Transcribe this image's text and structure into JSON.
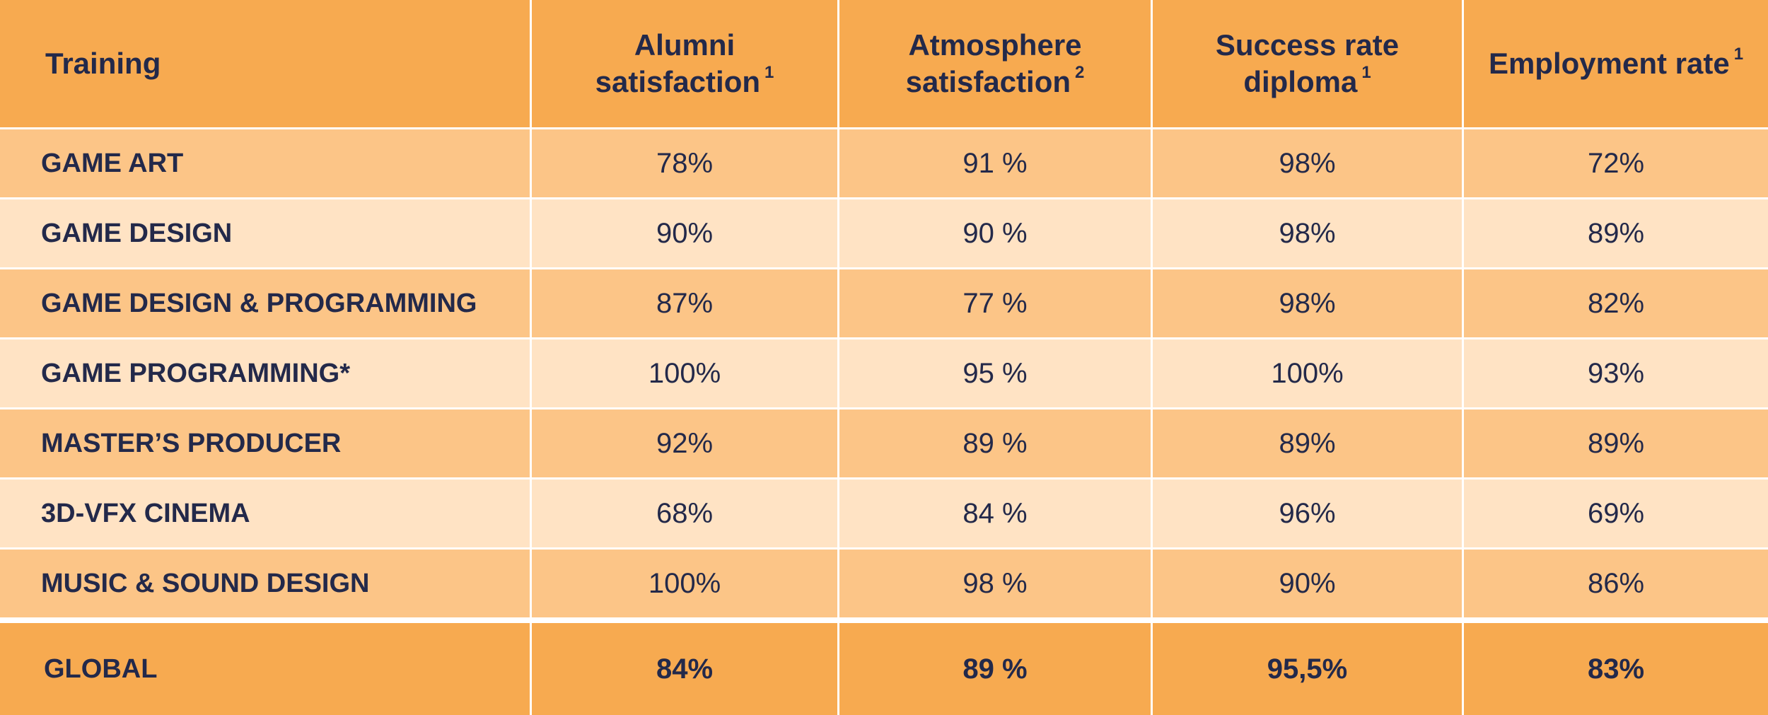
{
  "colors": {
    "header": "#f7aa50",
    "row_dark": "#fcc587",
    "row_light": "#ffe3c4",
    "text": "#23294a"
  },
  "headers": [
    {
      "line1": "Training",
      "line2": "",
      "sup": ""
    },
    {
      "line1": "Alumni",
      "line2": "satisfaction",
      "sup": "1"
    },
    {
      "line1": "Atmosphere",
      "line2": "satisfaction",
      "sup": "2"
    },
    {
      "line1": "Success rate",
      "line2": "diploma",
      "sup": "1"
    },
    {
      "line1": "Employment rate",
      "line2": "",
      "sup": "1"
    }
  ],
  "rows": [
    {
      "training": "GAME ART",
      "alumni": "78%",
      "atmosphere": "91 %",
      "success": "98%",
      "employment": "72%"
    },
    {
      "training": "GAME DESIGN",
      "alumni": "90%",
      "atmosphere": "90 %",
      "success": "98%",
      "employment": "89%"
    },
    {
      "training": "GAME DESIGN & PROGRAMMING",
      "alumni": "87%",
      "atmosphere": "77 %",
      "success": "98%",
      "employment": "82%"
    },
    {
      "training": "GAME PROGRAMMING*",
      "alumni": "100%",
      "atmosphere": "95 %",
      "success": "100%",
      "employment": "93%"
    },
    {
      "training": "MASTER’S PRODUCER",
      "alumni": "92%",
      "atmosphere": "89 %",
      "success": "89%",
      "employment": "89%"
    },
    {
      "training": "3D-VFX CINEMA",
      "alumni": "68%",
      "atmosphere": "84 %",
      "success": "96%",
      "employment": "69%"
    },
    {
      "training": "MUSIC & SOUND DESIGN",
      "alumni": "100%",
      "atmosphere": "98 %",
      "success": "90%",
      "employment": "86%"
    }
  ],
  "global": {
    "training": "GLOBAL",
    "alumni": "84%",
    "atmosphere": "89 %",
    "success": "95,5%",
    "employment": "83%"
  }
}
